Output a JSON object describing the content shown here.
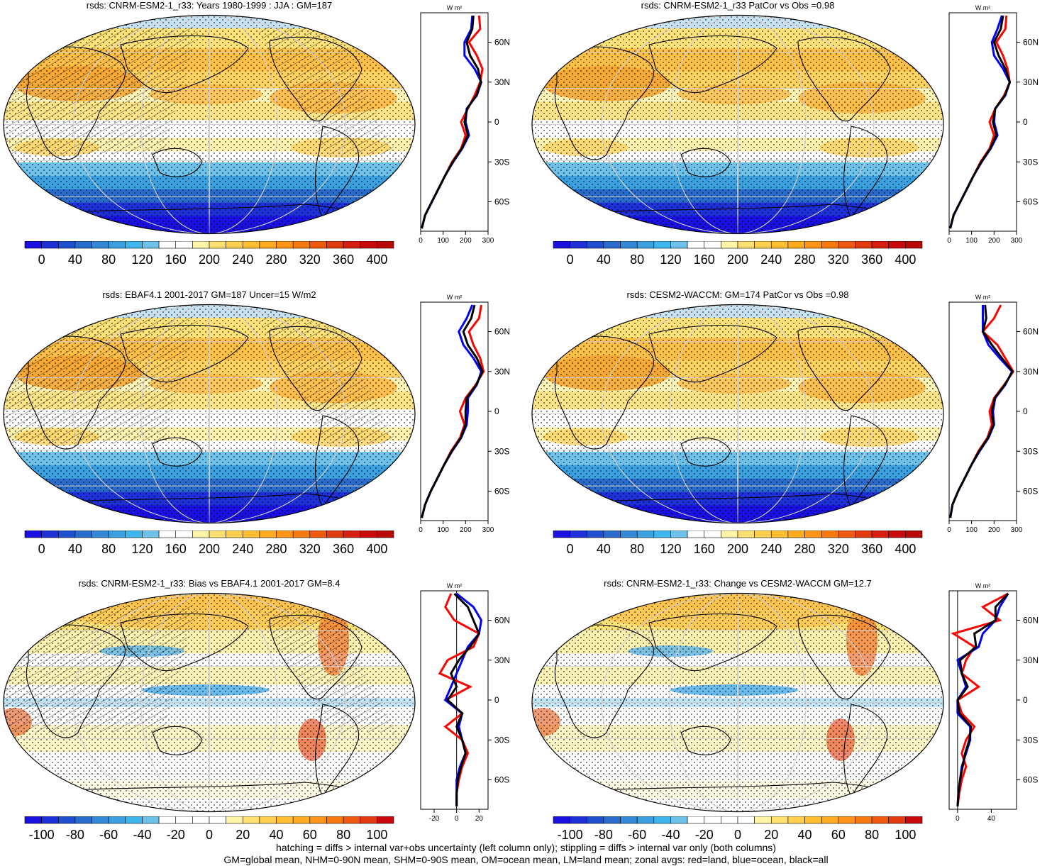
{
  "panels": [
    {
      "id": "p1",
      "title": "rsds: CNRM-ESM2-1_r33: Years 1980-1999 : JJA : GM=187",
      "map_kind": "abs",
      "colorbar": {
        "labels": [
          "0",
          "40",
          "80",
          "120",
          "160",
          "200",
          "240",
          "280",
          "320",
          "360",
          "400"
        ]
      },
      "zonal": {
        "unit": "W m²",
        "xticks": [
          "0",
          "100",
          "200",
          "300"
        ],
        "xrange": [
          0,
          300
        ],
        "yticks": [
          "60N",
          "30N",
          "0",
          "30S",
          "60S"
        ]
      }
    },
    {
      "id": "p2",
      "title": "rsds: CNRM-ESM2-1_r33 PatCor vs Obs =0.98",
      "map_kind": "abs",
      "colorbar": {
        "labels": [
          "0",
          "40",
          "80",
          "120",
          "160",
          "200",
          "240",
          "280",
          "320",
          "360",
          "400"
        ]
      },
      "zonal": {
        "unit": "W m²",
        "xticks": [
          "0",
          "100",
          "200",
          "300"
        ],
        "xrange": [
          0,
          300
        ],
        "yticks": [
          "60N",
          "30N",
          "0",
          "30S",
          "60S"
        ]
      }
    },
    {
      "id": "p3",
      "title": "rsds: EBAF4.1 2001-2017 GM=187 Uncer=15 W/m2",
      "map_kind": "abs",
      "colorbar": {
        "labels": [
          "0",
          "40",
          "80",
          "120",
          "160",
          "200",
          "240",
          "280",
          "320",
          "360",
          "400"
        ]
      },
      "zonal": {
        "unit": "W m²",
        "xticks": [
          "0",
          "100",
          "200",
          "300"
        ],
        "xrange": [
          0,
          300
        ],
        "yticks": [
          "60N",
          "30N",
          "0",
          "30S",
          "60S"
        ]
      }
    },
    {
      "id": "p4",
      "title": "rsds: CESM2-WACCM: GM=174 PatCor vs Obs =0.98",
      "map_kind": "abs",
      "colorbar": {
        "labels": [
          "0",
          "40",
          "80",
          "120",
          "160",
          "200",
          "240",
          "280",
          "320",
          "360",
          "400"
        ]
      },
      "zonal": {
        "unit": "W m²",
        "xticks": [
          "0",
          "100",
          "200",
          "300"
        ],
        "xrange": [
          0,
          300
        ],
        "yticks": [
          "60N",
          "30N",
          "0",
          "30S",
          "60S"
        ]
      }
    },
    {
      "id": "p5",
      "title": "rsds: CNRM-ESM2-1_r33: Bias vs EBAF4.1 2001-2017 GM=8.4",
      "map_kind": "diff",
      "colorbar": {
        "labels": [
          "-100",
          "-80",
          "-60",
          "-40",
          "-20",
          "0",
          "20",
          "40",
          "60",
          "80",
          "100"
        ]
      },
      "zonal": {
        "unit": "W m²",
        "xticks": [
          "-20",
          "0",
          "20"
        ],
        "xrange": [
          -32,
          28
        ],
        "yticks": [
          "60N",
          "30N",
          "0",
          "30S",
          "60S"
        ]
      }
    },
    {
      "id": "p6",
      "title": "rsds: CNRM-ESM2-1_r33: Change vs CESM2-WACCM GM=12.7",
      "map_kind": "diff",
      "colorbar": {
        "labels": [
          "-100",
          "-80",
          "-60",
          "-40",
          "-20",
          "0",
          "20",
          "40",
          "60",
          "80",
          "100"
        ]
      },
      "zonal": {
        "unit": "W m²",
        "xticks": [
          "0",
          "40"
        ],
        "xrange": [
          -10,
          70
        ],
        "yticks": [
          "60N",
          "30N",
          "0",
          "30S",
          "60S"
        ]
      }
    }
  ],
  "chart_data": {
    "type": "heatmap",
    "colorbar_abs_ticks": [
      0,
      40,
      80,
      120,
      160,
      200,
      240,
      280,
      320,
      360,
      400
    ],
    "colorbar_diff_ticks": [
      -100,
      -80,
      -60,
      -40,
      -20,
      0,
      20,
      40,
      60,
      80,
      100
    ],
    "zonal_means": [
      {
        "panel": "p1",
        "lat": [
          80,
          70,
          60,
          50,
          40,
          30,
          20,
          10,
          0,
          -10,
          -20,
          -30,
          -40,
          -50,
          -60,
          -70,
          -80
        ],
        "land": [
          260,
          265,
          215,
          250,
          275,
          265,
          240,
          210,
          180,
          200,
          180,
          140,
          110,
          80,
          50,
          20,
          5
        ],
        "ocean": [
          230,
          225,
          195,
          195,
          240,
          270,
          250,
          205,
          200,
          215,
          185,
          145,
          110,
          80,
          50,
          20,
          5
        ],
        "all": [
          235,
          230,
          205,
          220,
          255,
          268,
          248,
          207,
          195,
          210,
          183,
          143,
          110,
          80,
          50,
          20,
          5
        ]
      },
      {
        "panel": "p2",
        "lat": [
          80,
          70,
          60,
          50,
          40,
          30,
          20,
          10,
          0,
          -10,
          -20,
          -30,
          -40,
          -50,
          -60,
          -70,
          -80
        ],
        "land": [
          255,
          250,
          210,
          240,
          260,
          270,
          245,
          205,
          180,
          200,
          180,
          140,
          110,
          80,
          50,
          20,
          5
        ],
        "ocean": [
          235,
          215,
          190,
          200,
          240,
          270,
          250,
          205,
          200,
          215,
          185,
          145,
          110,
          80,
          50,
          20,
          5
        ],
        "all": [
          240,
          230,
          200,
          220,
          250,
          270,
          248,
          205,
          195,
          210,
          183,
          143,
          110,
          80,
          50,
          20,
          5
        ]
      },
      {
        "panel": "p3",
        "lat": [
          80,
          70,
          60,
          50,
          40,
          30,
          20,
          10,
          0,
          -10,
          -20,
          -30,
          -40,
          -50,
          -60,
          -70,
          -80
        ],
        "land": [
          270,
          260,
          215,
          235,
          265,
          280,
          245,
          200,
          175,
          195,
          175,
          135,
          105,
          75,
          45,
          20,
          5
        ],
        "ocean": [
          230,
          205,
          170,
          190,
          235,
          270,
          250,
          210,
          210,
          205,
          180,
          140,
          105,
          75,
          45,
          20,
          5
        ],
        "all": [
          240,
          225,
          190,
          210,
          250,
          275,
          248,
          205,
          200,
          200,
          178,
          138,
          105,
          75,
          45,
          20,
          5
        ]
      },
      {
        "panel": "p4",
        "lat": [
          80,
          70,
          60,
          50,
          40,
          30,
          20,
          10,
          0,
          -10,
          -20,
          -30,
          -40,
          -50,
          -60,
          -70,
          -80
        ],
        "land": [
          230,
          200,
          150,
          215,
          250,
          285,
          245,
          200,
          180,
          190,
          170,
          130,
          100,
          70,
          40,
          15,
          5
        ],
        "ocean": [
          150,
          150,
          150,
          175,
          225,
          280,
          250,
          205,
          195,
          200,
          175,
          135,
          100,
          70,
          40,
          15,
          5
        ],
        "all": [
          160,
          165,
          150,
          190,
          235,
          282,
          248,
          203,
          190,
          197,
          173,
          133,
          100,
          70,
          40,
          15,
          5
        ]
      },
      {
        "panel": "p5",
        "lat": [
          80,
          70,
          60,
          50,
          40,
          30,
          20,
          10,
          0,
          -10,
          -20,
          -30,
          -40,
          -50,
          -60,
          -70,
          -80
        ],
        "land": [
          -5,
          -10,
          -2,
          20,
          15,
          -8,
          -15,
          12,
          -10,
          5,
          -10,
          5,
          10,
          5,
          2,
          0,
          0
        ],
        "ocean": [
          0,
          15,
          22,
          20,
          10,
          5,
          0,
          -5,
          -10,
          5,
          2,
          5,
          8,
          3,
          0,
          0,
          0
        ],
        "all": [
          -2,
          10,
          15,
          20,
          12,
          2,
          -5,
          0,
          -8,
          5,
          0,
          5,
          8,
          4,
          1,
          0,
          0
        ]
      },
      {
        "panel": "p6",
        "lat": [
          80,
          70,
          60,
          50,
          40,
          30,
          20,
          10,
          0,
          -10,
          -20,
          -30,
          -40,
          -50,
          -60,
          -70,
          -80
        ],
        "land": [
          60,
          30,
          50,
          -5,
          20,
          10,
          5,
          25,
          0,
          5,
          20,
          10,
          5,
          10,
          5,
          2,
          0
        ],
        "ocean": [
          60,
          50,
          45,
          30,
          25,
          0,
          5,
          10,
          0,
          0,
          15,
          15,
          10,
          5,
          3,
          1,
          0
        ],
        "all": [
          60,
          45,
          45,
          20,
          22,
          3,
          5,
          12,
          0,
          2,
          16,
          14,
          9,
          6,
          3,
          1,
          0
        ]
      }
    ],
    "series_legend": "red=land, blue=ocean, black=all"
  },
  "footer": {
    "line1": "hatching = diffs > internal var+obs uncertainty (left column only); stippling = diffs > internal var only (both columns)",
    "line2": "GM=global mean, NHM=0-90N mean, SHM=0-90S mean, OM=ocean mean, LM=land mean; zonal avgs: red=land, blue=ocean, black=all"
  },
  "colors": {
    "abs_scale": [
      "#1a10e0",
      "#1e30d8",
      "#2050d0",
      "#2a6ccc",
      "#3389d8",
      "#3aa0e0",
      "#3fb6ec",
      "#6ec2ea",
      "#ffffff",
      "#ffffff",
      "#fff4a8",
      "#ffe070",
      "#ffd050",
      "#ffbf30",
      "#ffab20",
      "#ff9418",
      "#f77a10",
      "#ef5a10",
      "#e43a10",
      "#d81e10",
      "#c80a0a",
      "#b80808"
    ],
    "diff_scale": [
      "#1a10e0",
      "#1e30d8",
      "#2050d0",
      "#2a6ccc",
      "#3389d8",
      "#3aa0e0",
      "#3fb6ec",
      "#6ec2ea",
      "#ffffff",
      "#ffffff",
      "#ffffff",
      "#ffffff",
      "#fff4a8",
      "#ffe070",
      "#ffd050",
      "#ffbf30",
      "#ffab20",
      "#ff9418",
      "#f77a10",
      "#ef5a10",
      "#e43a10",
      "#c80a0a"
    ],
    "land": "#ff0000",
    "ocean": "#0000ff",
    "all": "#000000"
  }
}
